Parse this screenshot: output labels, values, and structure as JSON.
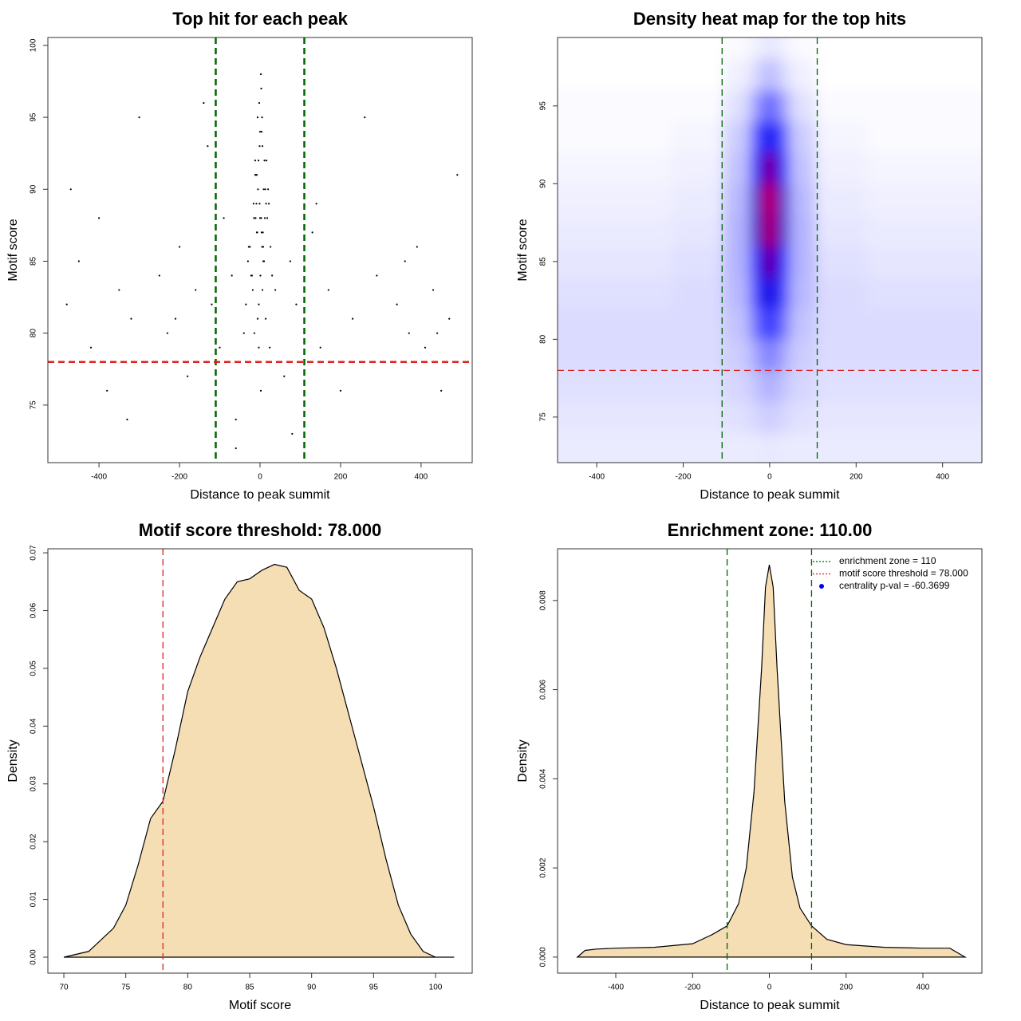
{
  "chart_data": [
    {
      "type": "scatter",
      "title": "Top hit for each peak",
      "x_label": "Distance to peak summit",
      "y_label": "Motif score",
      "xlim": [
        -527,
        527
      ],
      "ylim": [
        71.0,
        100.55
      ],
      "xticks": [
        -400,
        -200,
        0,
        200,
        400
      ],
      "yticks": [
        75,
        80,
        85,
        90,
        95,
        100
      ],
      "color": "#000000",
      "x": [
        -5,
        3,
        -12,
        8,
        0,
        -20,
        15,
        -8,
        4,
        -2,
        10,
        -15,
        6,
        -3,
        20,
        -25,
        12,
        -6,
        1,
        -10,
        7,
        -18,
        22,
        -4,
        2,
        -30,
        14,
        -9,
        5,
        -1,
        18,
        -14,
        9,
        -7,
        3,
        -22,
        11,
        -3,
        0,
        26,
        -12,
        6,
        -16,
        4,
        -35,
        30,
        -8,
        13,
        -2,
        8,
        -40,
        38,
        -11,
        2,
        16,
        -6,
        -28,
        24,
        5,
        -1,
        -480,
        -450,
        -420,
        -400,
        -380,
        -350,
        -320,
        -300,
        -280,
        -250,
        -230,
        -200,
        -180,
        -160,
        -140,
        -120,
        -100,
        -90,
        -70,
        -60,
        60,
        75,
        90,
        110,
        130,
        150,
        170,
        200,
        230,
        260,
        290,
        310,
        340,
        370,
        390,
        410,
        430,
        450,
        470,
        490,
        -470,
        -330,
        -210,
        -130,
        80,
        140,
        250,
        360,
        440,
        -60
      ],
      "values": [
        90,
        88,
        92,
        86,
        94,
        84,
        89,
        91,
        87,
        96,
        85,
        88,
        93,
        82,
        90,
        86,
        88,
        95,
        84,
        91,
        87,
        83,
        89,
        92,
        98,
        85,
        81,
        89,
        86,
        93,
        88,
        80,
        90,
        87,
        97,
        84,
        92,
        79,
        88,
        86,
        91,
        83,
        89,
        94,
        82,
        84,
        87,
        90,
        78,
        85,
        80,
        83,
        88,
        76,
        92,
        81,
        86,
        79,
        95,
        89,
        82,
        85,
        79,
        88,
        76,
        83,
        81,
        95,
        78,
        84,
        80,
        86,
        77,
        83,
        96,
        82,
        79,
        88,
        84,
        74,
        77,
        85,
        82,
        80,
        87,
        79,
        83,
        76,
        81,
        95,
        84,
        78,
        82,
        80,
        86,
        79,
        83,
        76,
        81,
        91,
        90,
        74,
        81,
        93,
        73,
        89,
        78,
        85,
        80,
        72
      ],
      "vlines": [
        {
          "value": -110,
          "color": "#006400"
        },
        {
          "value": 110,
          "color": "#006400"
        }
      ],
      "hlines": [
        {
          "value": 78,
          "color": "#dd2222"
        }
      ],
      "line_width": 2.5
    },
    {
      "type": "heatmap",
      "title": "Density heat map for the top hits",
      "x_label": "Distance to peak summit",
      "y_label": "Motif score",
      "xlim": [
        -490.6,
        491
      ],
      "ylim": [
        72.07,
        99.4
      ],
      "xticks": [
        -400,
        -200,
        0,
        200,
        400
      ],
      "yticks": [
        75,
        80,
        85,
        90,
        95
      ],
      "colors": [
        "#ffffff",
        "#0000ff",
        "#ff0000"
      ],
      "x": [
        -450,
        -300,
        -150,
        -60,
        -30,
        0,
        30,
        60,
        150,
        300,
        450
      ],
      "y": [
        73,
        75,
        77,
        79,
        81,
        83,
        85,
        87,
        89,
        91,
        93,
        95,
        97,
        99
      ],
      "z": [
        [
          0.04,
          0.04,
          0.04,
          0.04,
          0.04,
          0.05,
          0.04,
          0.04,
          0.04,
          0.04,
          0.04
        ],
        [
          0.05,
          0.05,
          0.05,
          0.06,
          0.08,
          0.1,
          0.08,
          0.06,
          0.05,
          0.05,
          0.05
        ],
        [
          0.06,
          0.06,
          0.06,
          0.08,
          0.12,
          0.16,
          0.12,
          0.08,
          0.06,
          0.06,
          0.06
        ],
        [
          0.07,
          0.07,
          0.07,
          0.1,
          0.18,
          0.26,
          0.18,
          0.1,
          0.07,
          0.07,
          0.07
        ],
        [
          0.07,
          0.07,
          0.07,
          0.12,
          0.3,
          0.42,
          0.3,
          0.12,
          0.07,
          0.07,
          0.07
        ],
        [
          0.06,
          0.06,
          0.07,
          0.14,
          0.4,
          0.56,
          0.4,
          0.14,
          0.07,
          0.06,
          0.06
        ],
        [
          0.05,
          0.05,
          0.06,
          0.15,
          0.5,
          0.72,
          0.5,
          0.15,
          0.06,
          0.05,
          0.05
        ],
        [
          0.04,
          0.04,
          0.05,
          0.15,
          0.6,
          0.86,
          0.6,
          0.15,
          0.05,
          0.04,
          0.04
        ],
        [
          0.03,
          0.03,
          0.04,
          0.14,
          0.6,
          0.9,
          0.6,
          0.14,
          0.04,
          0.03,
          0.03
        ],
        [
          0.02,
          0.02,
          0.03,
          0.12,
          0.5,
          0.76,
          0.5,
          0.12,
          0.03,
          0.02,
          0.02
        ],
        [
          0.01,
          0.01,
          0.02,
          0.1,
          0.36,
          0.52,
          0.36,
          0.1,
          0.02,
          0.01,
          0.01
        ],
        [
          0.01,
          0.01,
          0.01,
          0.06,
          0.2,
          0.32,
          0.2,
          0.06,
          0.01,
          0.01,
          0.01
        ],
        [
          0,
          0,
          0,
          0.03,
          0.08,
          0.14,
          0.08,
          0.03,
          0,
          0,
          0
        ],
        [
          0,
          0,
          0,
          0.01,
          0.03,
          0.05,
          0.03,
          0.01,
          0,
          0,
          0
        ]
      ],
      "vlines": [
        {
          "value": -110,
          "color": "#006400"
        },
        {
          "value": 110,
          "color": "#006400"
        }
      ],
      "hlines": [
        {
          "value": 78,
          "color": "#dd2222"
        }
      ],
      "line_width": 1.3
    },
    {
      "type": "density",
      "title": "Motif score threshold: 78.000",
      "x_label": "Motif score",
      "y_label": "Density",
      "xlim": [
        68.71,
        102.96
      ],
      "ylim": [
        -0.00276,
        0.0707
      ],
      "xticks": [
        70,
        75,
        80,
        85,
        90,
        95,
        100
      ],
      "yticks": [
        {
          "value": 0,
          "label": "0.00"
        },
        0.01,
        0.02,
        0.03,
        0.04,
        0.05,
        0.06,
        0.07
      ],
      "color": "#f5deb3",
      "x": [
        70,
        72,
        74,
        75,
        76,
        77,
        78,
        79,
        80,
        81,
        82,
        83,
        84,
        85,
        86,
        87,
        88,
        89,
        90,
        91,
        92,
        93,
        94,
        95,
        96,
        97,
        98,
        99,
        100,
        101.5
      ],
      "values": [
        0,
        0.001,
        0.005,
        0.009,
        0.016,
        0.024,
        0.027,
        0.036,
        0.046,
        0.052,
        0.057,
        0.062,
        0.065,
        0.0655,
        0.067,
        0.068,
        0.0675,
        0.0635,
        0.062,
        0.057,
        0.05,
        0.042,
        0.034,
        0.026,
        0.017,
        0.009,
        0.004,
        0.001,
        0,
        0
      ],
      "vlines": [
        {
          "value": 78,
          "color": "#dd2222"
        }
      ],
      "hlines": [],
      "line_width": 1.3
    },
    {
      "type": "density",
      "title": "Enrichment zone: 110.00",
      "x_label": "Distance to peak summit",
      "y_label": "Density",
      "xlim": [
        -551.7,
        553.8
      ],
      "ylim": [
        -0.00036,
        0.00916
      ],
      "xticks": [
        -400,
        -200,
        0,
        200,
        400
      ],
      "yticks": [
        {
          "value": 0,
          "label": "0.000"
        },
        {
          "value": 0.002,
          "label": "0.002"
        },
        {
          "value": 0.004,
          "label": "0.004"
        },
        {
          "value": 0.006,
          "label": "0.006"
        },
        {
          "value": 0.008,
          "label": "0.008"
        }
      ],
      "color": "#f5deb3",
      "x": [
        -500,
        -480,
        -450,
        -400,
        -300,
        -200,
        -150,
        -110,
        -80,
        -60,
        -40,
        -20,
        -10,
        0,
        10,
        20,
        40,
        60,
        80,
        110,
        150,
        200,
        300,
        400,
        470,
        500,
        510
      ],
      "values": [
        0,
        0.00015,
        0.00018,
        0.0002,
        0.00022,
        0.0003,
        0.0005,
        0.0007,
        0.0012,
        0.002,
        0.0037,
        0.0065,
        0.0083,
        0.0088,
        0.0083,
        0.0065,
        0.0035,
        0.0018,
        0.0011,
        0.0007,
        0.0004,
        0.00028,
        0.00022,
        0.0002,
        0.0002,
        5e-05,
        0
      ],
      "vlines": [
        {
          "value": -110,
          "color": "#006400"
        },
        {
          "value": 110,
          "color": "#006400"
        }
      ],
      "hlines": [],
      "line_width": 1.3,
      "legend": [
        {
          "name": "enrichment zone = 110",
          "color": "#006400",
          "style": "dotted"
        },
        {
          "name": "motif score threshold = 78.000",
          "color": "#dd2222",
          "style": "dotted"
        },
        {
          "name": "centrality p-val = -60.3699",
          "color": "#0000ff",
          "style": "point"
        }
      ]
    }
  ]
}
